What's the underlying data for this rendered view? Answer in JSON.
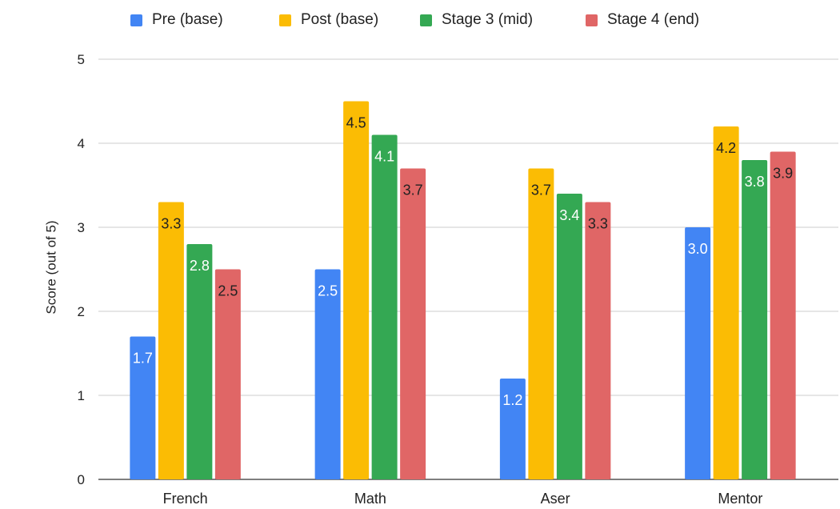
{
  "chart_data": {
    "type": "bar",
    "categories": [
      "French",
      "Math",
      "Aser",
      "Mentor"
    ],
    "series": [
      {
        "name": "Pre (base)",
        "color": "#4285F4",
        "values": [
          1.7,
          2.5,
          1.2,
          3.0
        ],
        "labels": [
          "1.7",
          "2.5",
          "1.2",
          "3.0"
        ],
        "label_color": "#ffffff"
      },
      {
        "name": "Post (base)",
        "color": "#FBBC04",
        "values": [
          3.3,
          4.5,
          3.7,
          4.2
        ],
        "labels": [
          "3.3",
          "4.5",
          "3.7",
          "4.2"
        ],
        "label_color": "#222222"
      },
      {
        "name": "Stage 3 (mid)",
        "color": "#34A853",
        "values": [
          2.8,
          4.1,
          3.4,
          3.8
        ],
        "labels": [
          "2.8",
          "4.1",
          "3.4",
          "3.8"
        ],
        "label_color": "#ffffff"
      },
      {
        "name": "Stage 4 (end)",
        "color": "#E06666",
        "values": [
          2.5,
          3.7,
          3.3,
          3.9
        ],
        "labels": [
          "2.5",
          "3.7",
          "3.3",
          "3.9"
        ],
        "label_color": "#222222"
      }
    ],
    "ylabel": "Score (out of 5)",
    "xlabel": "",
    "ylim": [
      0,
      5
    ],
    "yticks": [
      "0",
      "1",
      "2",
      "3",
      "4",
      "5"
    ],
    "grid": true,
    "legend_position": "top"
  }
}
